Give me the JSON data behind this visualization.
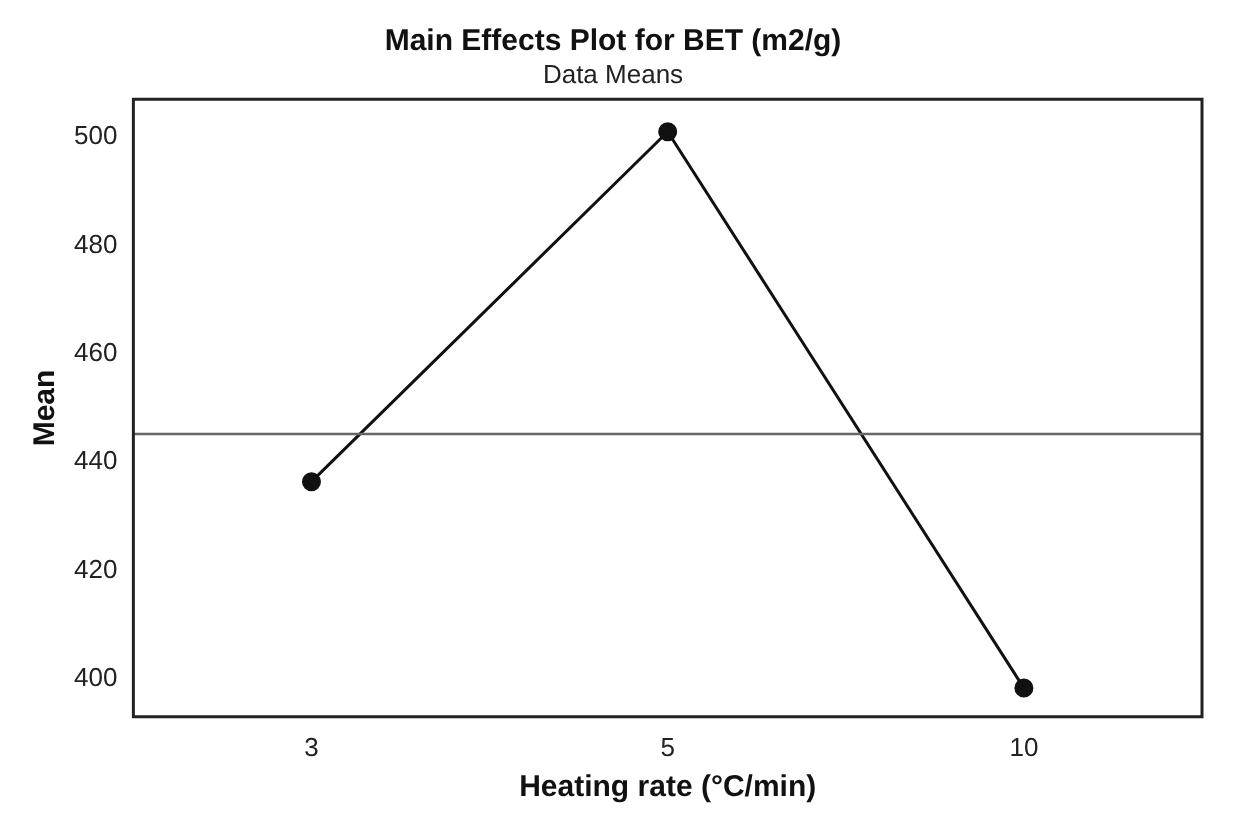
{
  "chart_data": {
    "type": "line",
    "title": "Main Effects Plot for BET (m2/g)",
    "subtitle": "Data Means",
    "xlabel": "Heating rate (°C/min)",
    "ylabel": "Mean",
    "categories": [
      "3",
      "5",
      "10"
    ],
    "values": [
      436.4,
      501,
      398.3
    ],
    "color": "#111111",
    "marker": "circle",
    "line_style": "solid",
    "ylim": [
      393,
      507
    ],
    "yticks": [
      400,
      420,
      440,
      460,
      480,
      500
    ],
    "grid": false,
    "legend": false,
    "ref_lines": [
      {
        "axis": "y",
        "value": 445.2,
        "color": "#666666"
      }
    ]
  }
}
